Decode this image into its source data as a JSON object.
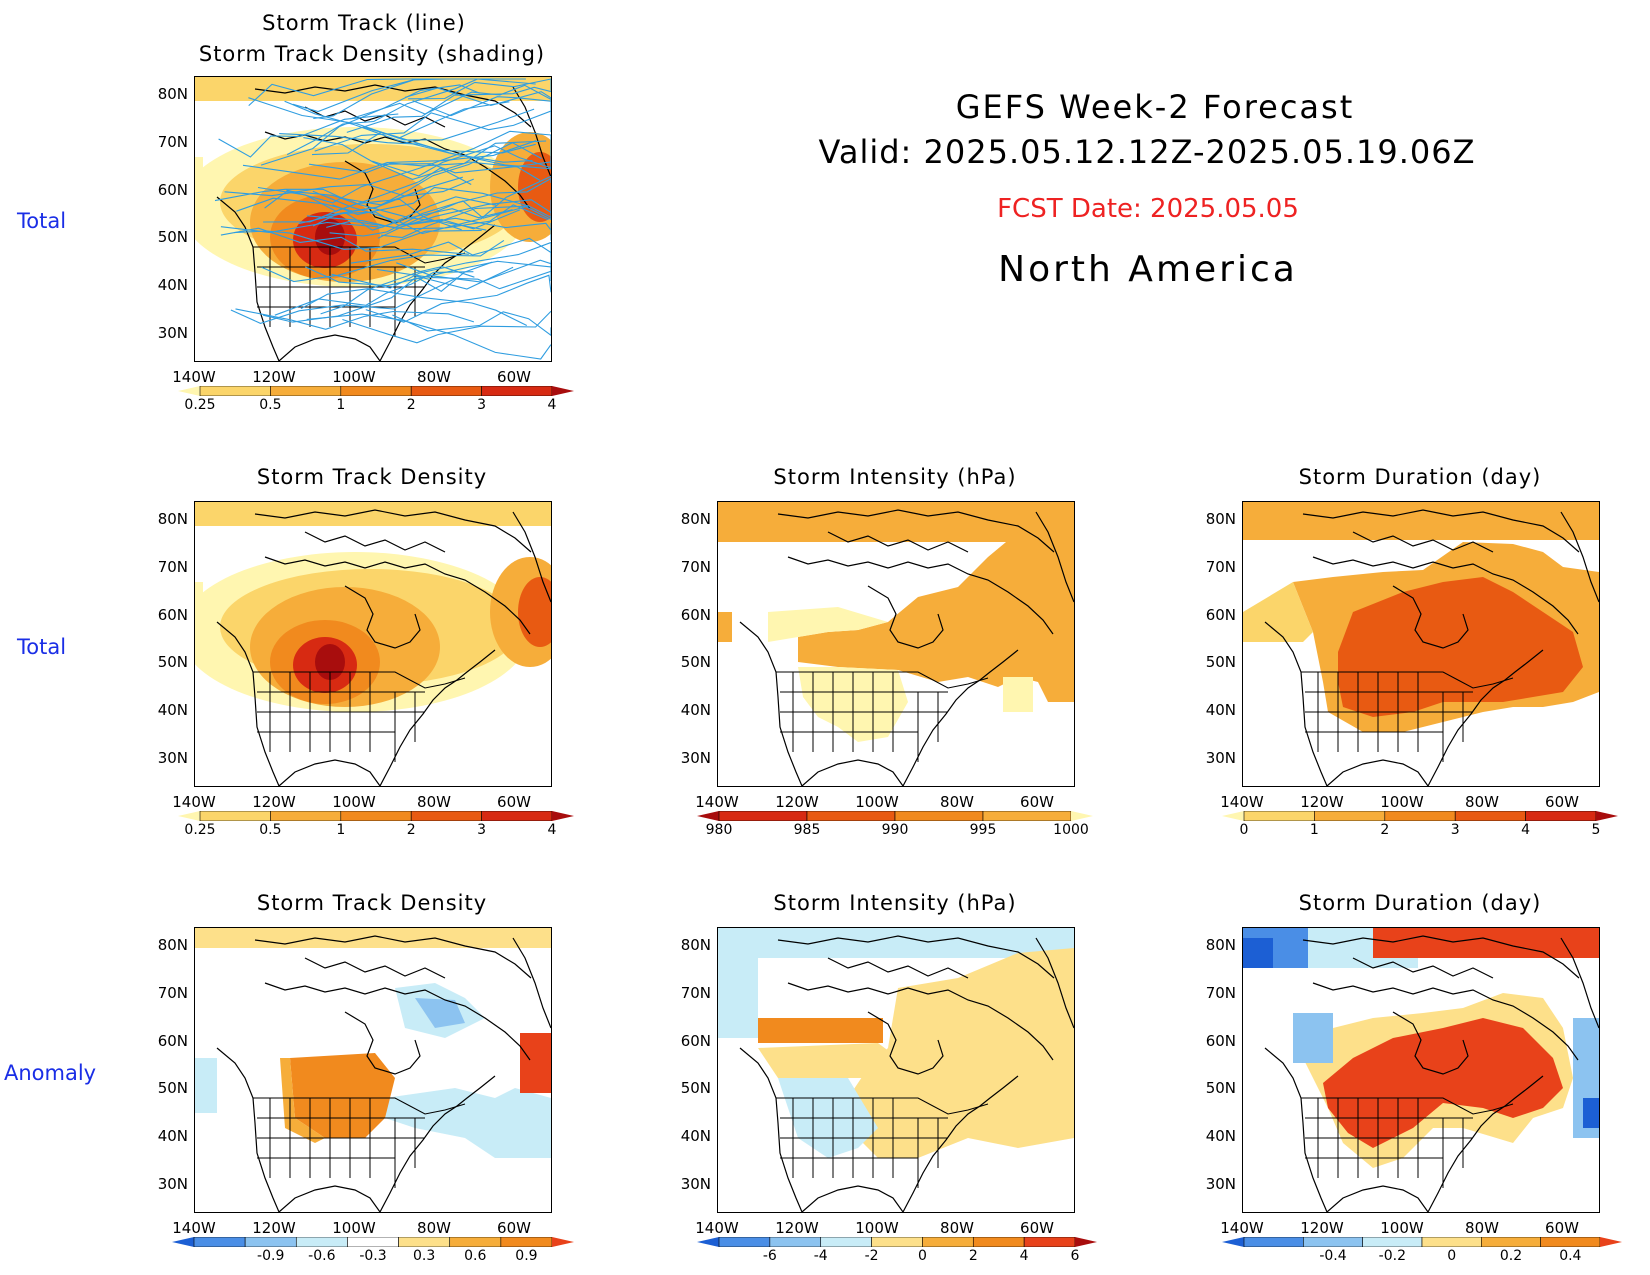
{
  "header": {
    "line1": "GEFS Week-2 Forecast",
    "line2": "Valid: 2025.05.12.12Z-2025.05.19.06Z",
    "fcst": "FCST Date: 2025.05.05",
    "region": "North America"
  },
  "row_labels": [
    "Total",
    "Total",
    "Anomaly"
  ],
  "lat_labels": [
    "80N",
    "70N",
    "60N",
    "50N",
    "40N",
    "30N"
  ],
  "lon_labels": [
    "140W",
    "120W",
    "100W",
    "80W",
    "60W"
  ],
  "panels": {
    "p1": {
      "title1": "Storm Track (line)",
      "title2": "Storm Track Density (shading)"
    },
    "p2": {
      "title": "Storm Track Density"
    },
    "p3": {
      "title": "Storm Intensity (hPa)"
    },
    "p4": {
      "title": "Storm Duration (day)"
    },
    "p5": {
      "title": "Storm Track Density"
    },
    "p6": {
      "title": "Storm Intensity (hPa)"
    },
    "p7": {
      "title": "Storm Duration (day)"
    }
  },
  "colorbars": {
    "density": {
      "ticks": [
        "0.25",
        "0.5",
        "1",
        "2",
        "3",
        "4"
      ],
      "colors": [
        "#fff6b0",
        "#fbd56a",
        "#f6ad3a",
        "#f18a1e",
        "#e85a12",
        "#d72a12",
        "#a80d0d"
      ]
    },
    "intensity": {
      "ticks": [
        "980",
        "985",
        "990",
        "995",
        "1000"
      ],
      "colors": [
        "#a80d0d",
        "#d72a12",
        "#e85a12",
        "#f18a1e",
        "#f6ad3a",
        "#fff6b0"
      ]
    },
    "duration": {
      "ticks": [
        "0",
        "1",
        "2",
        "3",
        "4",
        "5"
      ],
      "colors": [
        "#fff6b0",
        "#fbd56a",
        "#f6ad3a",
        "#f18a1e",
        "#e85a12",
        "#d72a12",
        "#a80d0d"
      ]
    },
    "anom_density": {
      "ticks": [
        "-0.9",
        "-0.6",
        "-0.3",
        "0.3",
        "0.6",
        "0.9"
      ],
      "colors": [
        "#1c5fd4",
        "#4a8ee6",
        "#8cc3f0",
        "#c8ecf7",
        "#ffffff",
        "#fde08a",
        "#f6ad3a",
        "#f18a1e",
        "#e8421a"
      ]
    },
    "anom_intensity": {
      "ticks": [
        "-6",
        "-4",
        "-2",
        "0",
        "2",
        "4",
        "6"
      ],
      "colors": [
        "#1c5fd4",
        "#4a8ee6",
        "#8cc3f0",
        "#c8ecf7",
        "#fde08a",
        "#f6ad3a",
        "#f18a1e",
        "#e8421a",
        "#a80d0d"
      ]
    },
    "anom_duration": {
      "ticks": [
        "-0.4",
        "-0.2",
        "0",
        "0.2",
        "0.4"
      ],
      "colors": [
        "#1c5fd4",
        "#4a8ee6",
        "#8cc3f0",
        "#c8ecf7",
        "#fde08a",
        "#f6ad3a",
        "#f18a1e",
        "#e8421a"
      ]
    }
  }
}
